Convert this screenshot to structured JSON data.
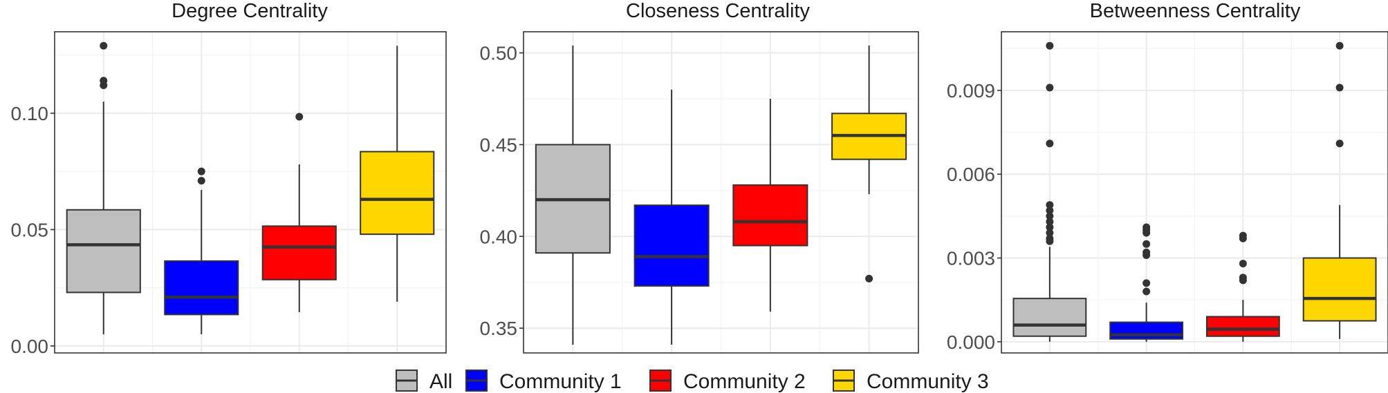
{
  "colors": {
    "All": "#bebebe",
    "Community 1": "#0000ff",
    "Community 2": "#ff0000",
    "Community 3": "#ffd700"
  },
  "legend": {
    "items": [
      "All",
      "Community 1",
      "Community 2",
      "Community 3"
    ]
  },
  "chart_data": [
    {
      "type": "boxplot",
      "title": "Degree Centrality",
      "categories": [
        "All",
        "Community 1",
        "Community 2",
        "Community 3"
      ],
      "ylim": [
        -0.003,
        0.135
      ],
      "yticks": [
        0.0,
        0.05,
        0.1
      ],
      "ytick_labels": [
        "0.00",
        "0.05",
        "0.10"
      ],
      "boxes": [
        {
          "group": "All",
          "min": 0.005,
          "q1": 0.023,
          "median": 0.0435,
          "q3": 0.0585,
          "max": 0.105,
          "outliers": [
            0.112,
            0.114,
            0.129
          ]
        },
        {
          "group": "Community 1",
          "min": 0.005,
          "q1": 0.0135,
          "median": 0.021,
          "q3": 0.0365,
          "max": 0.067,
          "outliers": [
            0.071,
            0.075
          ]
        },
        {
          "group": "Community 2",
          "min": 0.0145,
          "q1": 0.0285,
          "median": 0.0425,
          "q3": 0.0515,
          "max": 0.078,
          "outliers": [
            0.0985
          ]
        },
        {
          "group": "Community 3",
          "min": 0.019,
          "q1": 0.048,
          "median": 0.063,
          "q3": 0.0835,
          "max": 0.129,
          "outliers": []
        }
      ]
    },
    {
      "type": "boxplot",
      "title": "Closeness Centrality",
      "categories": [
        "All",
        "Community 1",
        "Community 2",
        "Community 3"
      ],
      "ylim": [
        0.3365,
        0.5115
      ],
      "yticks": [
        0.35,
        0.4,
        0.45,
        0.5
      ],
      "ytick_labels": [
        "0.35",
        "0.40",
        "0.45",
        "0.50"
      ],
      "boxes": [
        {
          "group": "All",
          "min": 0.341,
          "q1": 0.391,
          "median": 0.42,
          "q3": 0.45,
          "max": 0.504,
          "outliers": []
        },
        {
          "group": "Community 1",
          "min": 0.341,
          "q1": 0.373,
          "median": 0.389,
          "q3": 0.417,
          "max": 0.48,
          "outliers": []
        },
        {
          "group": "Community 2",
          "min": 0.359,
          "q1": 0.395,
          "median": 0.408,
          "q3": 0.428,
          "max": 0.475,
          "outliers": []
        },
        {
          "group": "Community 3",
          "min": 0.423,
          "q1": 0.442,
          "median": 0.455,
          "q3": 0.467,
          "max": 0.504,
          "outliers": [
            0.377
          ]
        }
      ]
    },
    {
      "type": "boxplot",
      "title": "Betweenness Centrality",
      "categories": [
        "All",
        "Community 1",
        "Community 2",
        "Community 3"
      ],
      "ylim": [
        -0.0004,
        0.0111
      ],
      "yticks": [
        0.0,
        0.003,
        0.006,
        0.009
      ],
      "ytick_labels": [
        "0.000",
        "0.003",
        "0.006",
        "0.009"
      ],
      "boxes": [
        {
          "group": "All",
          "min": 0.0,
          "q1": 0.0002,
          "median": 0.0006,
          "q3": 0.00155,
          "max": 0.0034,
          "outliers": [
            0.0036,
            0.0037,
            0.0039,
            0.0041,
            0.0043,
            0.0045,
            0.0047,
            0.0049,
            0.0071,
            0.0091,
            0.0106
          ]
        },
        {
          "group": "Community 1",
          "min": 0.0,
          "q1": 0.0001,
          "median": 0.00025,
          "q3": 0.0007,
          "max": 0.0014,
          "outliers": [
            0.0018,
            0.0021,
            0.0031,
            0.0032,
            0.0035,
            0.0039,
            0.004,
            0.0041
          ]
        },
        {
          "group": "Community 2",
          "min": 0.0,
          "q1": 0.0002,
          "median": 0.00045,
          "q3": 0.0009,
          "max": 0.0015,
          "outliers": [
            0.0022,
            0.0023,
            0.0028,
            0.0037,
            0.0038
          ]
        },
        {
          "group": "Community 3",
          "min": 0.0001,
          "q1": 0.00075,
          "median": 0.00155,
          "q3": 0.003,
          "max": 0.0049,
          "outliers": [
            0.0071,
            0.0091,
            0.0106
          ]
        }
      ]
    }
  ]
}
